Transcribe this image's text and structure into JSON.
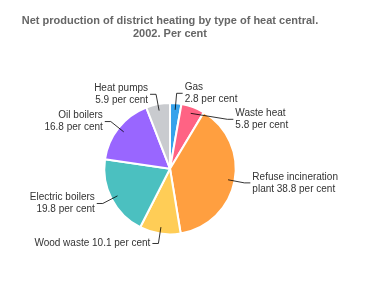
{
  "chart_data": {
    "type": "pie",
    "title": "Net production of district heating by type of heat central.\n2002. Per cent",
    "categories": [
      "Gas\n2.8 per cent",
      "Waste heat\n5.8 per cent",
      "Refuse incineration\nplant 38.8 per cent",
      "Wood waste 10.1 per cent",
      "Electric boilers\n19.8 per cent",
      "Oil boilers\n16.8 per cent",
      "Heat pumps\n5.9 per cent"
    ],
    "values": [
      2.8,
      5.8,
      38.8,
      10.1,
      19.8,
      16.8,
      5.9
    ]
  }
}
